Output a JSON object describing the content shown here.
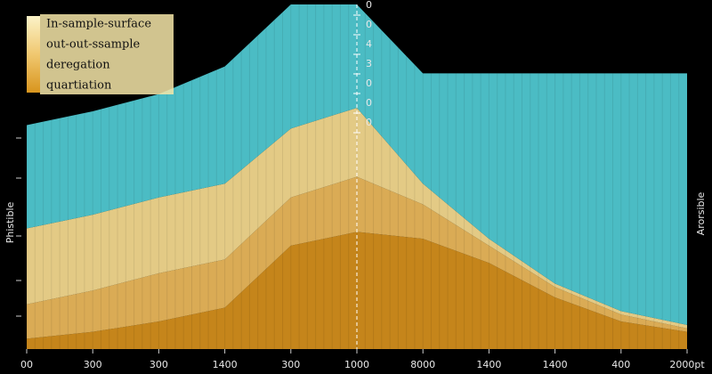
{
  "chart_data": {
    "type": "stacked_area",
    "y_label_left": "Phistible",
    "y_label_right": "Arorsible",
    "categories": [
      "00",
      "300",
      "300",
      "1400",
      "300",
      "1000",
      "8000",
      "1400",
      "1400",
      "400",
      "2000pt"
    ],
    "series": [
      {
        "name": "quartiation",
        "color": "#d08c1c",
        "values": [
          3,
          5,
          8,
          12,
          30,
          34,
          32,
          25,
          15,
          8,
          5
        ]
      },
      {
        "name": "deregation",
        "color": "#e6b45a",
        "values": [
          10,
          12,
          14,
          14,
          14,
          16,
          10,
          5,
          3,
          2,
          1
        ]
      },
      {
        "name": "out-out-ssample",
        "color": "#efd58c",
        "values": [
          22,
          22,
          22,
          22,
          20,
          20,
          6,
          2,
          1,
          1,
          1
        ]
      },
      {
        "name": "In-sample-surface",
        "color": "#4fc6cf",
        "values": [
          30,
          30,
          30,
          34,
          36,
          30,
          32,
          48,
          61,
          69,
          73
        ]
      }
    ],
    "ylim": [
      0,
      100
    ],
    "marker_category": 5,
    "marker_labels": [
      "0",
      "0",
      "4",
      "3",
      "0",
      "0",
      "0"
    ]
  }
}
